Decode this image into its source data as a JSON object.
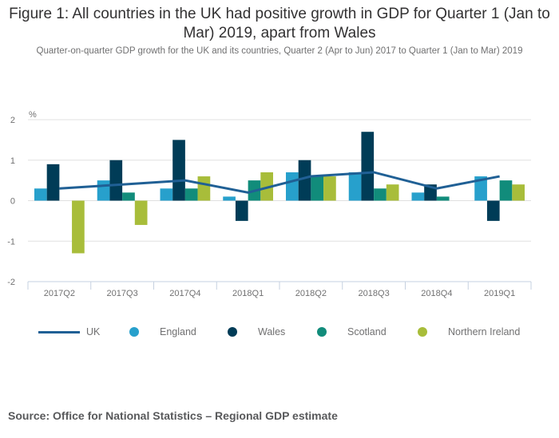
{
  "title": "Figure 1: All countries in the UK had positive growth in GDP for Quarter 1 (Jan to Mar) 2019, apart from Wales",
  "subtitle": "Quarter-on-quarter GDP growth for the UK and its countries, Quarter 2 (Apr to Jun) 2017 to Quarter 1 (Jan to Mar) 2019",
  "source": "Source: Office for National Statistics – Regional GDP estimate",
  "chart_data": {
    "type": "bar",
    "title": "Figure 1: All countries in the UK had positive growth in GDP for Quarter 1 (Jan to Mar) 2019, apart from Wales",
    "subtitle": "Quarter-on-quarter GDP growth for the UK and its countries, Quarter 2 (Apr to Jun) 2017 to Quarter 1 (Jan to Mar) 2019",
    "xlabel": "",
    "ylabel": "%",
    "ylim": [
      -2,
      2
    ],
    "yticks": [
      2,
      1,
      0,
      -1,
      -2
    ],
    "grid": true,
    "legend_position": "bottom",
    "categories": [
      "2017Q2",
      "2017Q3",
      "2017Q4",
      "2018Q1",
      "2018Q2",
      "2018Q3",
      "2018Q4",
      "2019Q1"
    ],
    "line_series": {
      "name": "UK",
      "color": "#206095",
      "values": [
        0.3,
        0.4,
        0.5,
        0.2,
        0.6,
        0.7,
        0.3,
        0.6
      ]
    },
    "series": [
      {
        "name": "England",
        "color": "#27a0cc",
        "values": [
          0.3,
          0.5,
          0.3,
          0.1,
          0.7,
          0.7,
          0.2,
          0.6
        ]
      },
      {
        "name": "Wales",
        "color": "#003c57",
        "values": [
          0.9,
          1.0,
          1.5,
          -0.5,
          1.0,
          1.7,
          0.4,
          -0.5
        ]
      },
      {
        "name": "Scotland",
        "color": "#118c7b",
        "values": [
          0.0,
          0.2,
          0.3,
          0.5,
          0.6,
          0.3,
          0.1,
          0.5
        ]
      },
      {
        "name": "Northern Ireland",
        "color": "#a8bd3a",
        "values": [
          -1.3,
          -0.6,
          0.6,
          0.7,
          0.6,
          0.4,
          0.0,
          0.4
        ]
      }
    ]
  },
  "colors": {
    "gridline": "#e0e0e0",
    "axis": "#c6d1e0",
    "text": "#707071"
  }
}
